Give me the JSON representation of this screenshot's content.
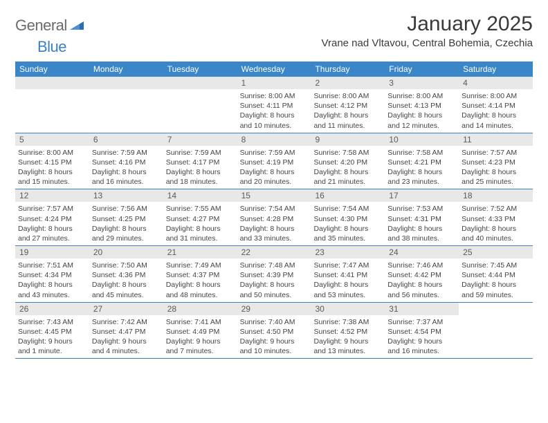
{
  "logo": {
    "word1": "General",
    "word2": "Blue"
  },
  "title": "January 2025",
  "location": "Vrane nad Vltavou, Central Bohemia, Czechia",
  "colors": {
    "header_bg": "#3b86c8",
    "header_text": "#ffffff",
    "daynum_bg": "#e8e8e8",
    "daynum_text": "#5a5a5a",
    "body_text": "#444444",
    "divider": "#3b7fc4",
    "logo_gray": "#6b6b6b",
    "logo_blue": "#3b7fc4",
    "title_color": "#3a3a3a"
  },
  "weekdays": [
    "Sunday",
    "Monday",
    "Tuesday",
    "Wednesday",
    "Thursday",
    "Friday",
    "Saturday"
  ],
  "weeks": [
    [
      null,
      null,
      null,
      {
        "n": "1",
        "sr": "Sunrise: 8:00 AM",
        "ss": "Sunset: 4:11 PM",
        "d1": "Daylight: 8 hours",
        "d2": "and 10 minutes."
      },
      {
        "n": "2",
        "sr": "Sunrise: 8:00 AM",
        "ss": "Sunset: 4:12 PM",
        "d1": "Daylight: 8 hours",
        "d2": "and 11 minutes."
      },
      {
        "n": "3",
        "sr": "Sunrise: 8:00 AM",
        "ss": "Sunset: 4:13 PM",
        "d1": "Daylight: 8 hours",
        "d2": "and 12 minutes."
      },
      {
        "n": "4",
        "sr": "Sunrise: 8:00 AM",
        "ss": "Sunset: 4:14 PM",
        "d1": "Daylight: 8 hours",
        "d2": "and 14 minutes."
      }
    ],
    [
      {
        "n": "5",
        "sr": "Sunrise: 8:00 AM",
        "ss": "Sunset: 4:15 PM",
        "d1": "Daylight: 8 hours",
        "d2": "and 15 minutes."
      },
      {
        "n": "6",
        "sr": "Sunrise: 7:59 AM",
        "ss": "Sunset: 4:16 PM",
        "d1": "Daylight: 8 hours",
        "d2": "and 16 minutes."
      },
      {
        "n": "7",
        "sr": "Sunrise: 7:59 AM",
        "ss": "Sunset: 4:17 PM",
        "d1": "Daylight: 8 hours",
        "d2": "and 18 minutes."
      },
      {
        "n": "8",
        "sr": "Sunrise: 7:59 AM",
        "ss": "Sunset: 4:19 PM",
        "d1": "Daylight: 8 hours",
        "d2": "and 20 minutes."
      },
      {
        "n": "9",
        "sr": "Sunrise: 7:58 AM",
        "ss": "Sunset: 4:20 PM",
        "d1": "Daylight: 8 hours",
        "d2": "and 21 minutes."
      },
      {
        "n": "10",
        "sr": "Sunrise: 7:58 AM",
        "ss": "Sunset: 4:21 PM",
        "d1": "Daylight: 8 hours",
        "d2": "and 23 minutes."
      },
      {
        "n": "11",
        "sr": "Sunrise: 7:57 AM",
        "ss": "Sunset: 4:23 PM",
        "d1": "Daylight: 8 hours",
        "d2": "and 25 minutes."
      }
    ],
    [
      {
        "n": "12",
        "sr": "Sunrise: 7:57 AM",
        "ss": "Sunset: 4:24 PM",
        "d1": "Daylight: 8 hours",
        "d2": "and 27 minutes."
      },
      {
        "n": "13",
        "sr": "Sunrise: 7:56 AM",
        "ss": "Sunset: 4:25 PM",
        "d1": "Daylight: 8 hours",
        "d2": "and 29 minutes."
      },
      {
        "n": "14",
        "sr": "Sunrise: 7:55 AM",
        "ss": "Sunset: 4:27 PM",
        "d1": "Daylight: 8 hours",
        "d2": "and 31 minutes."
      },
      {
        "n": "15",
        "sr": "Sunrise: 7:54 AM",
        "ss": "Sunset: 4:28 PM",
        "d1": "Daylight: 8 hours",
        "d2": "and 33 minutes."
      },
      {
        "n": "16",
        "sr": "Sunrise: 7:54 AM",
        "ss": "Sunset: 4:30 PM",
        "d1": "Daylight: 8 hours",
        "d2": "and 35 minutes."
      },
      {
        "n": "17",
        "sr": "Sunrise: 7:53 AM",
        "ss": "Sunset: 4:31 PM",
        "d1": "Daylight: 8 hours",
        "d2": "and 38 minutes."
      },
      {
        "n": "18",
        "sr": "Sunrise: 7:52 AM",
        "ss": "Sunset: 4:33 PM",
        "d1": "Daylight: 8 hours",
        "d2": "and 40 minutes."
      }
    ],
    [
      {
        "n": "19",
        "sr": "Sunrise: 7:51 AM",
        "ss": "Sunset: 4:34 PM",
        "d1": "Daylight: 8 hours",
        "d2": "and 43 minutes."
      },
      {
        "n": "20",
        "sr": "Sunrise: 7:50 AM",
        "ss": "Sunset: 4:36 PM",
        "d1": "Daylight: 8 hours",
        "d2": "and 45 minutes."
      },
      {
        "n": "21",
        "sr": "Sunrise: 7:49 AM",
        "ss": "Sunset: 4:37 PM",
        "d1": "Daylight: 8 hours",
        "d2": "and 48 minutes."
      },
      {
        "n": "22",
        "sr": "Sunrise: 7:48 AM",
        "ss": "Sunset: 4:39 PM",
        "d1": "Daylight: 8 hours",
        "d2": "and 50 minutes."
      },
      {
        "n": "23",
        "sr": "Sunrise: 7:47 AM",
        "ss": "Sunset: 4:41 PM",
        "d1": "Daylight: 8 hours",
        "d2": "and 53 minutes."
      },
      {
        "n": "24",
        "sr": "Sunrise: 7:46 AM",
        "ss": "Sunset: 4:42 PM",
        "d1": "Daylight: 8 hours",
        "d2": "and 56 minutes."
      },
      {
        "n": "25",
        "sr": "Sunrise: 7:45 AM",
        "ss": "Sunset: 4:44 PM",
        "d1": "Daylight: 8 hours",
        "d2": "and 59 minutes."
      }
    ],
    [
      {
        "n": "26",
        "sr": "Sunrise: 7:43 AM",
        "ss": "Sunset: 4:45 PM",
        "d1": "Daylight: 9 hours",
        "d2": "and 1 minute."
      },
      {
        "n": "27",
        "sr": "Sunrise: 7:42 AM",
        "ss": "Sunset: 4:47 PM",
        "d1": "Daylight: 9 hours",
        "d2": "and 4 minutes."
      },
      {
        "n": "28",
        "sr": "Sunrise: 7:41 AM",
        "ss": "Sunset: 4:49 PM",
        "d1": "Daylight: 9 hours",
        "d2": "and 7 minutes."
      },
      {
        "n": "29",
        "sr": "Sunrise: 7:40 AM",
        "ss": "Sunset: 4:50 PM",
        "d1": "Daylight: 9 hours",
        "d2": "and 10 minutes."
      },
      {
        "n": "30",
        "sr": "Sunrise: 7:38 AM",
        "ss": "Sunset: 4:52 PM",
        "d1": "Daylight: 9 hours",
        "d2": "and 13 minutes."
      },
      {
        "n": "31",
        "sr": "Sunrise: 7:37 AM",
        "ss": "Sunset: 4:54 PM",
        "d1": "Daylight: 9 hours",
        "d2": "and 16 minutes."
      },
      null
    ]
  ]
}
